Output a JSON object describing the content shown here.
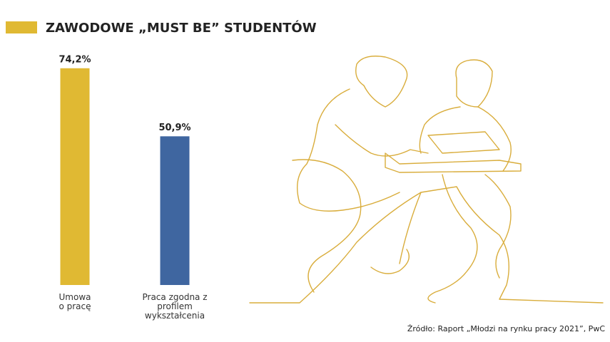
{
  "chart_data": {
    "type": "bar",
    "title": "ZAWODOWE „MUST BE” STUDENTÓW",
    "categories": [
      "Umowa o pracę",
      "Praca zgodna z profilem wykształcenia"
    ],
    "values": [
      74.2,
      50.9
    ],
    "value_labels": [
      "74,2%",
      "50,9%"
    ],
    "colors": [
      "#e0b933",
      "#3f66a0"
    ],
    "ylim": [
      0,
      80
    ],
    "source": "Źródło: Raport „Młodzi na rynku pracy 2021”, PwC"
  }
}
